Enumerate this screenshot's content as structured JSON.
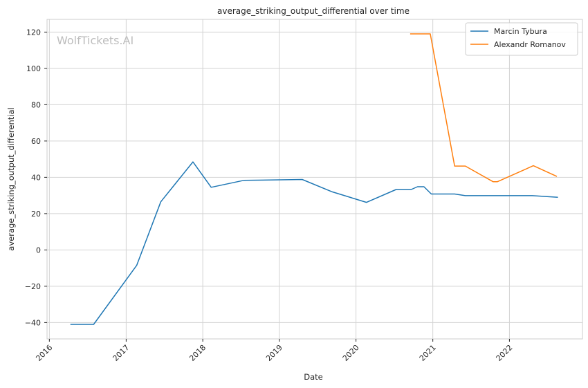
{
  "chart_data": {
    "type": "line",
    "title": "average_striking_output_differential over time",
    "xlabel": "Date",
    "ylabel": "average_striking_output_differential",
    "watermark": "WolfTickets.AI",
    "x_tick_labels": [
      "2016",
      "2017",
      "2018",
      "2019",
      "2020",
      "2021",
      "2022"
    ],
    "y_ticks": [
      -40,
      -20,
      0,
      20,
      40,
      60,
      80,
      100,
      120
    ],
    "y_tick_labels": [
      "−40",
      "−20",
      "0",
      "20",
      "40",
      "60",
      "80",
      "100",
      "120"
    ],
    "xlim": [
      "2015-12-21",
      "2022-12-15"
    ],
    "ylim": [
      -49,
      127
    ],
    "grid": true,
    "legend_position": "top-right",
    "series": [
      {
        "name": "Marcin Tybura",
        "color": "#1f77b4",
        "points": [
          {
            "x": "2016-04-10",
            "y": -41
          },
          {
            "x": "2016-07-30",
            "y": -41
          },
          {
            "x": "2017-02-20",
            "y": -8.5
          },
          {
            "x": "2017-06-15",
            "y": 26.5
          },
          {
            "x": "2017-11-15",
            "y": 48.5
          },
          {
            "x": "2018-02-10",
            "y": 34.5
          },
          {
            "x": "2018-07-15",
            "y": 38.3
          },
          {
            "x": "2019-04-20",
            "y": 38.8
          },
          {
            "x": "2019-09-10",
            "y": 32
          },
          {
            "x": "2020-02-20",
            "y": 26.2
          },
          {
            "x": "2020-07-10",
            "y": 33.3
          },
          {
            "x": "2020-09-20",
            "y": 33.3
          },
          {
            "x": "2020-10-20",
            "y": 34.8
          },
          {
            "x": "2020-11-20",
            "y": 34.8
          },
          {
            "x": "2020-12-25",
            "y": 30.8
          },
          {
            "x": "2021-04-15",
            "y": 30.8
          },
          {
            "x": "2021-06-05",
            "y": 29.9
          },
          {
            "x": "2022-04-20",
            "y": 29.9
          },
          {
            "x": "2022-08-20",
            "y": 29
          }
        ]
      },
      {
        "name": "Alexandr Romanov",
        "color": "#ff7f0e",
        "points": [
          {
            "x": "2020-09-15",
            "y": 119
          },
          {
            "x": "2020-12-20",
            "y": 119
          },
          {
            "x": "2021-04-15",
            "y": 46.2
          },
          {
            "x": "2021-06-05",
            "y": 46.2
          },
          {
            "x": "2021-10-15",
            "y": 37.6
          },
          {
            "x": "2021-11-05",
            "y": 37.6
          },
          {
            "x": "2022-04-25",
            "y": 46.4
          },
          {
            "x": "2022-08-15",
            "y": 40.5
          }
        ]
      }
    ]
  }
}
